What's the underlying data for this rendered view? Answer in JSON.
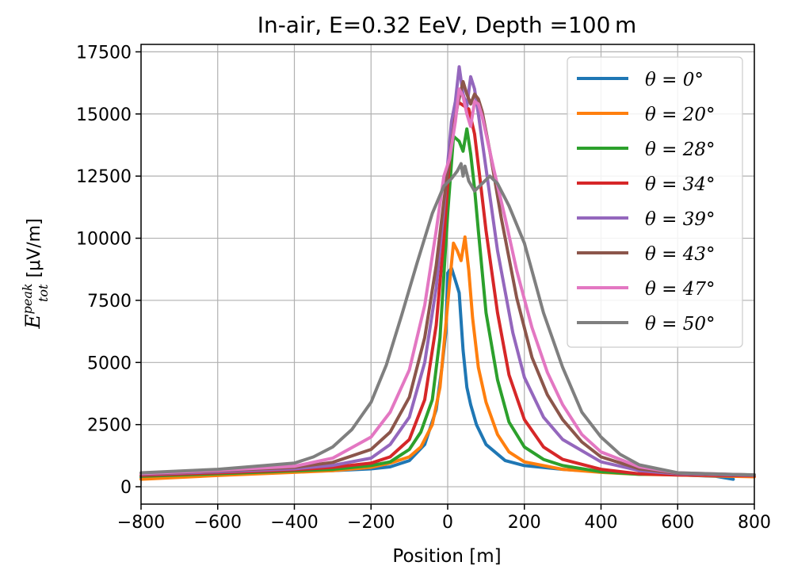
{
  "chart_data": {
    "type": "line",
    "title": "In-air, E=0.32 EeV, Depth =100 m",
    "xlabel": "Position [m]",
    "ylabel_main": "E",
    "ylabel_sup": "peak",
    "ylabel_sub": "tot",
    "ylabel_unit": " [μV/m]",
    "xlim": [
      -800,
      800
    ],
    "ylim": [
      -700,
      17800
    ],
    "xticks": [
      -800,
      -600,
      -400,
      -200,
      0,
      200,
      400,
      600,
      800
    ],
    "xtick_labels": [
      "−800",
      "−600",
      "−400",
      "−200",
      "0",
      "200",
      "400",
      "600",
      "800"
    ],
    "yticks": [
      0,
      2500,
      5000,
      7500,
      10000,
      12500,
      15000,
      17500
    ],
    "ytick_labels": [
      "0",
      "2500",
      "5000",
      "7500",
      "10000",
      "12500",
      "15000",
      "17500"
    ],
    "grid": true,
    "legend_position": "top-right",
    "series": [
      {
        "name": "θ = 0°",
        "color": "#1f77b4",
        "x": [
          -800,
          -600,
          -400,
          -300,
          -200,
          -150,
          -100,
          -60,
          -30,
          -15,
          -5,
          0,
          10,
          20,
          30,
          40,
          50,
          60,
          75,
          100,
          150,
          200,
          300,
          400,
          500,
          600,
          700,
          745
        ],
        "y": [
          350,
          480,
          600,
          650,
          720,
          800,
          1050,
          1700,
          3100,
          4800,
          6200,
          8600,
          8800,
          8300,
          7800,
          5500,
          4000,
          3300,
          2500,
          1700,
          1050,
          850,
          700,
          600,
          520,
          480,
          420,
          300
        ]
      },
      {
        "name": "θ = 20°",
        "color": "#ff7f0e",
        "x": [
          -800,
          -600,
          -400,
          -300,
          -200,
          -150,
          -100,
          -70,
          -40,
          -20,
          -5,
          5,
          15,
          25,
          35,
          45,
          55,
          65,
          80,
          100,
          130,
          160,
          200,
          300,
          400,
          500,
          600,
          800
        ],
        "y": [
          300,
          450,
          580,
          650,
          780,
          950,
          1200,
          1600,
          2500,
          4000,
          6500,
          8200,
          9800,
          9500,
          9100,
          10050,
          8700,
          6800,
          4800,
          3400,
          2100,
          1400,
          1000,
          700,
          580,
          500,
          470,
          400
        ]
      },
      {
        "name": "θ = 28°",
        "color": "#2ca02c",
        "x": [
          -800,
          -600,
          -400,
          -300,
          -200,
          -150,
          -100,
          -70,
          -40,
          -20,
          0,
          15,
          30,
          40,
          50,
          60,
          70,
          80,
          100,
          130,
          160,
          200,
          250,
          300,
          400,
          500,
          600,
          800
        ],
        "y": [
          420,
          520,
          640,
          700,
          850,
          1000,
          1500,
          2200,
          3500,
          6000,
          11000,
          14100,
          13900,
          13500,
          14400,
          13400,
          12000,
          10300,
          7000,
          4300,
          2600,
          1600,
          1100,
          850,
          600,
          500,
          520,
          480
        ]
      },
      {
        "name": "θ = 34°",
        "color": "#d62728",
        "x": [
          -800,
          -600,
          -400,
          -300,
          -200,
          -150,
          -100,
          -60,
          -30,
          -10,
          5,
          15,
          25,
          35,
          45,
          55,
          70,
          85,
          100,
          130,
          160,
          200,
          250,
          300,
          400,
          500,
          600,
          800
        ],
        "y": [
          460,
          560,
          680,
          780,
          950,
          1200,
          1900,
          3500,
          6500,
          10000,
          13200,
          14500,
          15500,
          15400,
          15300,
          15200,
          14200,
          12300,
          10300,
          7000,
          4500,
          2700,
          1600,
          1100,
          700,
          520,
          470,
          440
        ]
      },
      {
        "name": "θ = 39°",
        "color": "#9467bd",
        "x": [
          -800,
          -600,
          -400,
          -300,
          -200,
          -150,
          -100,
          -60,
          -30,
          -10,
          0,
          10,
          20,
          30,
          40,
          50,
          60,
          70,
          80,
          100,
          130,
          170,
          200,
          250,
          300,
          400,
          500,
          600,
          800
        ],
        "y": [
          500,
          600,
          720,
          860,
          1150,
          1700,
          2800,
          5000,
          8000,
          11200,
          13000,
          14700,
          15500,
          16900,
          15800,
          15300,
          16500,
          16000,
          15000,
          12800,
          9500,
          6200,
          4400,
          2800,
          1900,
          1000,
          650,
          520,
          460
        ]
      },
      {
        "name": "θ = 43°",
        "color": "#8c564b",
        "x": [
          -800,
          -600,
          -400,
          -300,
          -200,
          -150,
          -100,
          -60,
          -30,
          -10,
          10,
          25,
          40,
          50,
          60,
          70,
          80,
          90,
          110,
          140,
          180,
          220,
          260,
          300,
          350,
          400,
          500,
          600,
          800
        ],
        "y": [
          520,
          640,
          780,
          980,
          1500,
          2200,
          3600,
          6000,
          8900,
          11500,
          13800,
          15300,
          16300,
          15800,
          15400,
          15800,
          15600,
          15100,
          13500,
          10800,
          7600,
          5200,
          3700,
          2700,
          1800,
          1200,
          720,
          540,
          470
        ]
      },
      {
        "name": "θ = 47°",
        "color": "#e377c2",
        "x": [
          -800,
          -600,
          -400,
          -300,
          -200,
          -150,
          -100,
          -60,
          -30,
          -10,
          5,
          20,
          30,
          40,
          50,
          60,
          70,
          80,
          90,
          100,
          120,
          150,
          180,
          220,
          260,
          300,
          350,
          400,
          500,
          600,
          800
        ],
        "y": [
          530,
          660,
          820,
          1150,
          2000,
          3000,
          4700,
          7300,
          10300,
          12500,
          13200,
          14700,
          16000,
          15700,
          15000,
          14500,
          15500,
          15400,
          14900,
          14200,
          12800,
          10800,
          8700,
          6400,
          4600,
          3300,
          2100,
          1400,
          800,
          560,
          470
        ]
      },
      {
        "name": "θ = 50°",
        "color": "#7f7f7f",
        "x": [
          -800,
          -600,
          -400,
          -350,
          -300,
          -250,
          -200,
          -160,
          -120,
          -80,
          -40,
          -10,
          10,
          25,
          35,
          40,
          45,
          55,
          70,
          90,
          110,
          130,
          160,
          200,
          250,
          300,
          350,
          400,
          450,
          500,
          600,
          800
        ],
        "y": [
          560,
          700,
          950,
          1200,
          1600,
          2300,
          3400,
          4900,
          6900,
          9000,
          11000,
          12100,
          12400,
          12700,
          13000,
          12500,
          12900,
          12300,
          11900,
          12200,
          12500,
          12200,
          11300,
          9800,
          7000,
          4800,
          3000,
          2000,
          1300,
          880,
          560,
          470
        ]
      }
    ]
  }
}
